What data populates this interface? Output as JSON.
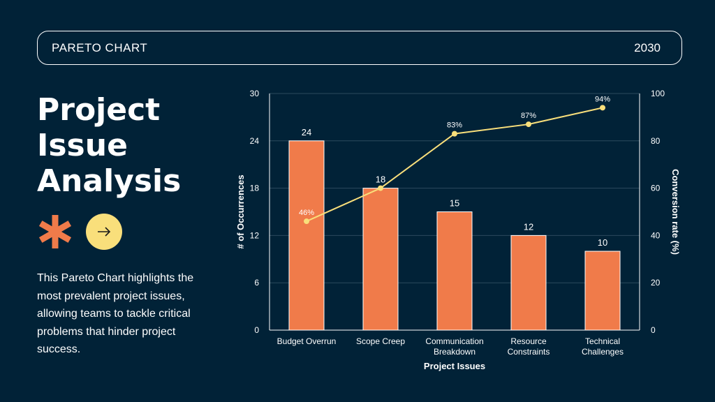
{
  "header": {
    "title": "PARETO CHART",
    "year": "2030"
  },
  "main": {
    "title": "Project Issue Analysis",
    "description": "This Pareto Chart highlights the most prevalent project issues, allowing teams to tackle critical problems that hinder project success.",
    "icons": [
      "asterisk-icon",
      "arrow-right-icon"
    ]
  },
  "colors": {
    "background": "#012237",
    "bar": "#f07b4a",
    "line": "#f9df7b",
    "asterisk": "#f07b4a",
    "grid": "#2c4a5e"
  },
  "chart_data": {
    "type": "bar",
    "title": "",
    "xlabel": "Project Issues",
    "ylabel": "# of Occurrences",
    "y2label": "Conversion rate (%)",
    "categories": [
      [
        "Budget Overrun"
      ],
      [
        "Scope Creep"
      ],
      [
        "Communication",
        "Breakdown"
      ],
      [
        "Resource",
        "Constraints"
      ],
      [
        "Technical",
        "Challenges"
      ]
    ],
    "series": [
      {
        "name": "# of Occurrences",
        "type": "bar",
        "axis": "left",
        "values": [
          24,
          18,
          15,
          12,
          10
        ],
        "labels": [
          "24",
          "18",
          "15",
          "12",
          "10"
        ]
      },
      {
        "name": "Conversion rate (%)",
        "type": "line",
        "axis": "right",
        "values": [
          46,
          60,
          83,
          87,
          94
        ],
        "labels": [
          "46%",
          "",
          "83%",
          "87%",
          "94%"
        ]
      }
    ],
    "ylim": [
      0,
      30
    ],
    "yticks": [
      0,
      6,
      12,
      18,
      24,
      30
    ],
    "y2lim": [
      0,
      100
    ],
    "y2ticks": [
      0,
      20,
      40,
      60,
      80,
      100
    ],
    "grid": true
  }
}
